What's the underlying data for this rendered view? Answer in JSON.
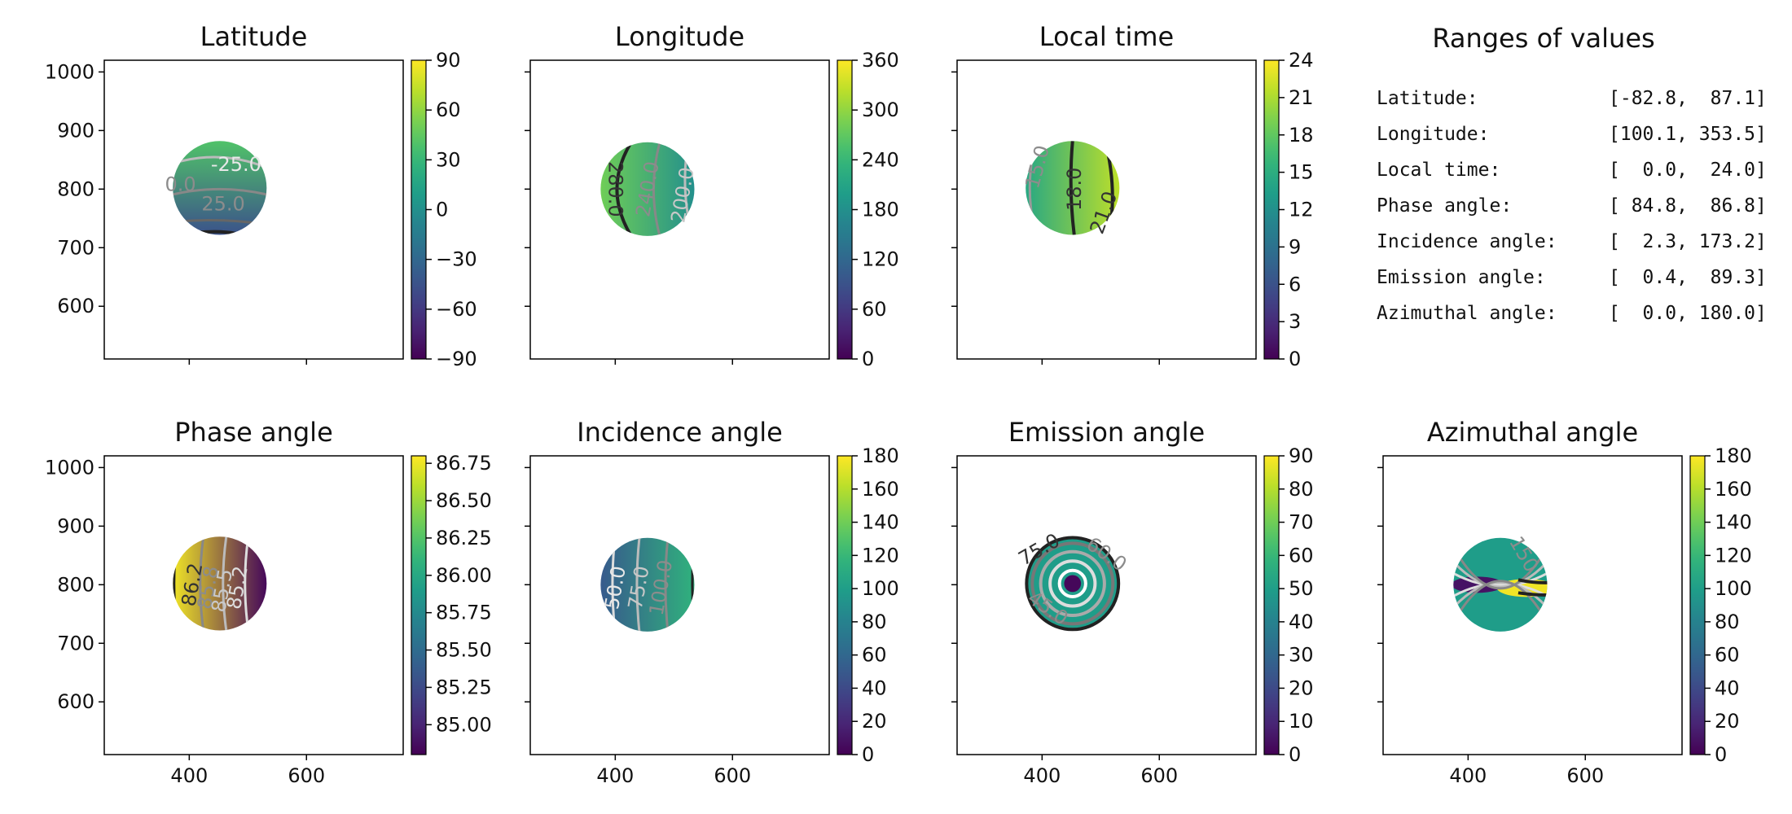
{
  "chart_data": [
    {
      "type": "heatmap",
      "title": "Latitude",
      "colormap": "viridis",
      "xlim": [
        255,
        765
      ],
      "ylim": [
        510,
        1020
      ],
      "xticks": [
        400,
        600
      ],
      "yticks": [
        600,
        700,
        800,
        900,
        1000
      ],
      "show_xticklabels": false,
      "show_yticklabels": true,
      "cbar_min": -90,
      "cbar_max": 90,
      "cbar_ticks": [
        "-90",
        "-60",
        "-30",
        "0",
        "30",
        "60",
        "90"
      ],
      "disk": {
        "cx": 452,
        "cy": 802,
        "r": 80
      },
      "gradient": {
        "angle": 90,
        "start": 0.25,
        "end": 0.72
      },
      "contour_labels": [
        {
          "text": "-25.0",
          "x": 480,
          "y": 842,
          "color": "#e8e8e8",
          "rot": 0
        },
        {
          "text": "0.0",
          "x": 385,
          "y": 808,
          "color": "#8c8c8c",
          "rot": 0
        },
        {
          "text": "25.0",
          "x": 458,
          "y": 775,
          "color": "#8c8c8c",
          "rot": 0
        }
      ]
    },
    {
      "type": "heatmap",
      "title": "Longitude",
      "colormap": "viridis",
      "xlim": [
        255,
        765
      ],
      "ylim": [
        510,
        1020
      ],
      "xticks": [
        400,
        600
      ],
      "yticks": [
        600,
        700,
        800,
        900,
        1000
      ],
      "show_xticklabels": false,
      "show_yticklabels": false,
      "cbar_min": 0,
      "cbar_max": 360,
      "cbar_ticks": [
        "0",
        "60",
        "120",
        "180",
        "240",
        "300",
        "360"
      ],
      "disk": {
        "cx": 455,
        "cy": 800,
        "r": 80
      },
      "gradient": {
        "angle": 0,
        "start": 0.78,
        "end": 0.5
      },
      "contour_labels": [
        {
          "text": "280.0",
          "x": 400,
          "y": 800,
          "color": "#333333",
          "rot": 90
        },
        {
          "text": "240.0",
          "x": 455,
          "y": 800,
          "color": "#8c8c8c",
          "rot": -80
        },
        {
          "text": "200.0",
          "x": 515,
          "y": 790,
          "color": "#c8c8c8",
          "rot": -80
        }
      ]
    },
    {
      "type": "heatmap",
      "title": "Local time",
      "colormap": "viridis",
      "xlim": [
        255,
        765
      ],
      "ylim": [
        510,
        1020
      ],
      "xticks": [
        400,
        600
      ],
      "yticks": [
        600,
        700,
        800,
        900,
        1000
      ],
      "show_xticklabels": false,
      "show_yticklabels": false,
      "cbar_min": 0,
      "cbar_max": 24,
      "cbar_ticks": [
        "0",
        "3",
        "6",
        "9",
        "12",
        "15",
        "18",
        "21",
        "24"
      ],
      "disk": {
        "cx": 452,
        "cy": 802,
        "r": 80
      },
      "gradient": {
        "angle": 0,
        "start": 0.6,
        "end": 0.9
      },
      "contour_labels": [
        {
          "text": "15.0",
          "x": 392,
          "y": 838,
          "color": "#8c8c8c",
          "rot": -75
        },
        {
          "text": "18.0",
          "x": 455,
          "y": 800,
          "color": "#333333",
          "rot": -90
        },
        {
          "text": "21.0",
          "x": 505,
          "y": 760,
          "color": "#333333",
          "rot": -70
        }
      ]
    },
    {
      "type": "heatmap",
      "title": "Phase angle",
      "colormap": "viridis",
      "xlim": [
        255,
        765
      ],
      "ylim": [
        510,
        1020
      ],
      "xticks": [
        400,
        600
      ],
      "yticks": [
        600,
        700,
        800,
        900,
        1000
      ],
      "show_xticklabels": true,
      "show_yticklabels": true,
      "cbar_min": 84.8,
      "cbar_max": 86.8,
      "cbar_ticks": [
        "85.00",
        "85.25",
        "85.50",
        "85.75",
        "86.00",
        "86.25",
        "86.50",
        "86.75"
      ],
      "disk": {
        "cx": 452,
        "cy": 802,
        "r": 80
      },
      "gradient": {
        "angle": 0,
        "start": 0.98,
        "end": 0.02
      },
      "contour_labels": [
        {
          "text": "86.2",
          "x": 405,
          "y": 800,
          "color": "#333333",
          "rot": -80
        },
        {
          "text": "85.8",
          "x": 432,
          "y": 795,
          "color": "#8c8c8c",
          "rot": -80
        },
        {
          "text": "85.5",
          "x": 456,
          "y": 790,
          "color": "#c8c8c8",
          "rot": -80
        },
        {
          "text": "85.2",
          "x": 482,
          "y": 795,
          "color": "#dddddd",
          "rot": -80
        }
      ]
    },
    {
      "type": "heatmap",
      "title": "Incidence angle",
      "colormap": "viridis",
      "xlim": [
        255,
        765
      ],
      "ylim": [
        510,
        1020
      ],
      "xticks": [
        400,
        600
      ],
      "yticks": [
        600,
        700,
        800,
        900,
        1000
      ],
      "show_xticklabels": true,
      "show_yticklabels": false,
      "cbar_min": 0,
      "cbar_max": 180,
      "cbar_ticks": [
        "0",
        "20",
        "40",
        "60",
        "80",
        "100",
        "120",
        "140",
        "160",
        "180"
      ],
      "disk": {
        "cx": 455,
        "cy": 800,
        "r": 80
      },
      "gradient": {
        "angle": 0,
        "start": 0.28,
        "end": 0.64
      },
      "contour_labels": [
        {
          "text": "50.0",
          "x": 400,
          "y": 795,
          "color": "#e8e8e8",
          "rot": -80
        },
        {
          "text": "75.0",
          "x": 440,
          "y": 795,
          "color": "#c8c8c8",
          "rot": -80
        },
        {
          "text": "100.0",
          "x": 478,
          "y": 795,
          "color": "#8c8c8c",
          "rot": -80
        }
      ]
    },
    {
      "type": "heatmap",
      "title": "Emission angle",
      "colormap": "viridis",
      "xlim": [
        255,
        765
      ],
      "ylim": [
        510,
        1020
      ],
      "xticks": [
        400,
        600
      ],
      "yticks": [
        600,
        700,
        800,
        900,
        1000
      ],
      "show_xticklabels": true,
      "show_yticklabels": false,
      "cbar_min": 0,
      "cbar_max": 90,
      "cbar_ticks": [
        "0",
        "10",
        "20",
        "30",
        "40",
        "50",
        "60",
        "70",
        "80",
        "90"
      ],
      "disk": {
        "cx": 452,
        "cy": 802,
        "r": 80
      },
      "gradient": {
        "angle": 0,
        "start": 0.55,
        "end": 0.55
      },
      "contour_labels": [
        {
          "text": "75.0",
          "x": 395,
          "y": 860,
          "color": "#333333",
          "rot": -30
        },
        {
          "text": "60.0",
          "x": 510,
          "y": 852,
          "color": "#8c8c8c",
          "rot": 35
        },
        {
          "text": "45.0",
          "x": 410,
          "y": 760,
          "color": "#8c8c8c",
          "rot": 35
        }
      ]
    },
    {
      "type": "heatmap",
      "title": "Azimuthal angle",
      "colormap": "viridis",
      "xlim": [
        255,
        765
      ],
      "ylim": [
        510,
        1020
      ],
      "xticks": [
        400,
        600
      ],
      "yticks": [
        600,
        700,
        800,
        900,
        1000
      ],
      "show_xticklabels": true,
      "show_yticklabels": false,
      "cbar_min": 0,
      "cbar_max": 180,
      "cbar_ticks": [
        "0",
        "20",
        "40",
        "60",
        "80",
        "100",
        "120",
        "140",
        "160",
        "180"
      ],
      "disk": {
        "cx": 455,
        "cy": 800,
        "r": 80
      },
      "gradient": {
        "angle": 0,
        "start": 0.55,
        "end": 0.55
      },
      "contour_labels": [
        {
          "text": "150",
          "x": 495,
          "y": 852,
          "color": "#8c8c8c",
          "rot": 60
        }
      ]
    }
  ],
  "ranges": {
    "title": "Ranges of values",
    "rows": [
      {
        "label": "Latitude:",
        "value": "[-82.8,  87.1]"
      },
      {
        "label": "Longitude:",
        "value": "[100.1, 353.5]"
      },
      {
        "label": "Local time:",
        "value": "[  0.0,  24.0]"
      },
      {
        "label": "Phase angle:",
        "value": "[ 84.8,  86.8]"
      },
      {
        "label": "Incidence angle:",
        "value": "[  2.3, 173.2]"
      },
      {
        "label": "Emission angle:",
        "value": "[  0.4,  89.3]"
      },
      {
        "label": "Azimuthal angle:",
        "value": "[  0.0, 180.0]"
      }
    ]
  }
}
